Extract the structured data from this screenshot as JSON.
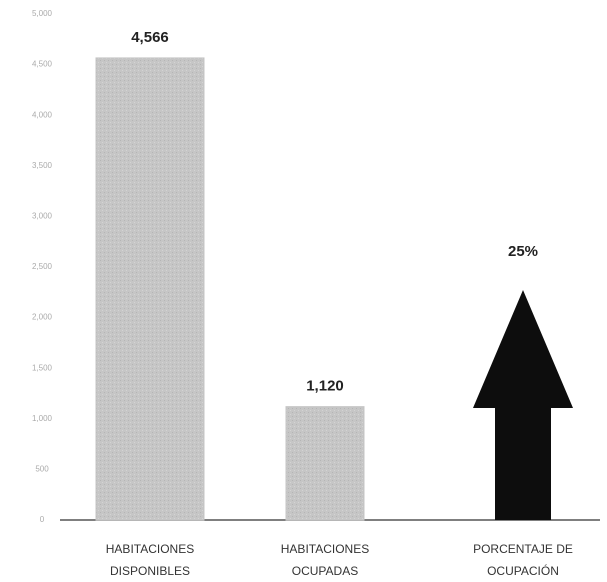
{
  "chart_data": {
    "type": "bar",
    "categories": [
      [
        "HABITACIONES",
        "DISPONIBLES"
      ],
      [
        "HABITACIONES",
        "OCUPADAS"
      ],
      [
        "PORCENTAJE DE",
        "OCUPACIÓN"
      ]
    ],
    "values": [
      4566,
      1120,
      null
    ],
    "value_labels": [
      "4,566",
      "1,120",
      null
    ],
    "color": "#c4c4c4",
    "occupancy": {
      "value": 25,
      "label": "25%",
      "color": "#0d0d0d"
    },
    "ylim": [
      0,
      5000
    ],
    "yticks": [
      0,
      500,
      {
        "value": 1000,
        "label": "1,000"
      },
      {
        "value": 1500,
        "label": "1,500"
      },
      {
        "value": 2000,
        "label": "2,000"
      },
      {
        "value": 2500,
        "label": "2,500"
      },
      {
        "value": 3000,
        "label": "3,000"
      },
      {
        "value": 3500,
        "label": "3,500"
      },
      {
        "value": 4000,
        "label": "4,000"
      },
      {
        "value": 4500,
        "label": "4,500"
      },
      {
        "value": 5000,
        "label": "5,000"
      }
    ]
  }
}
